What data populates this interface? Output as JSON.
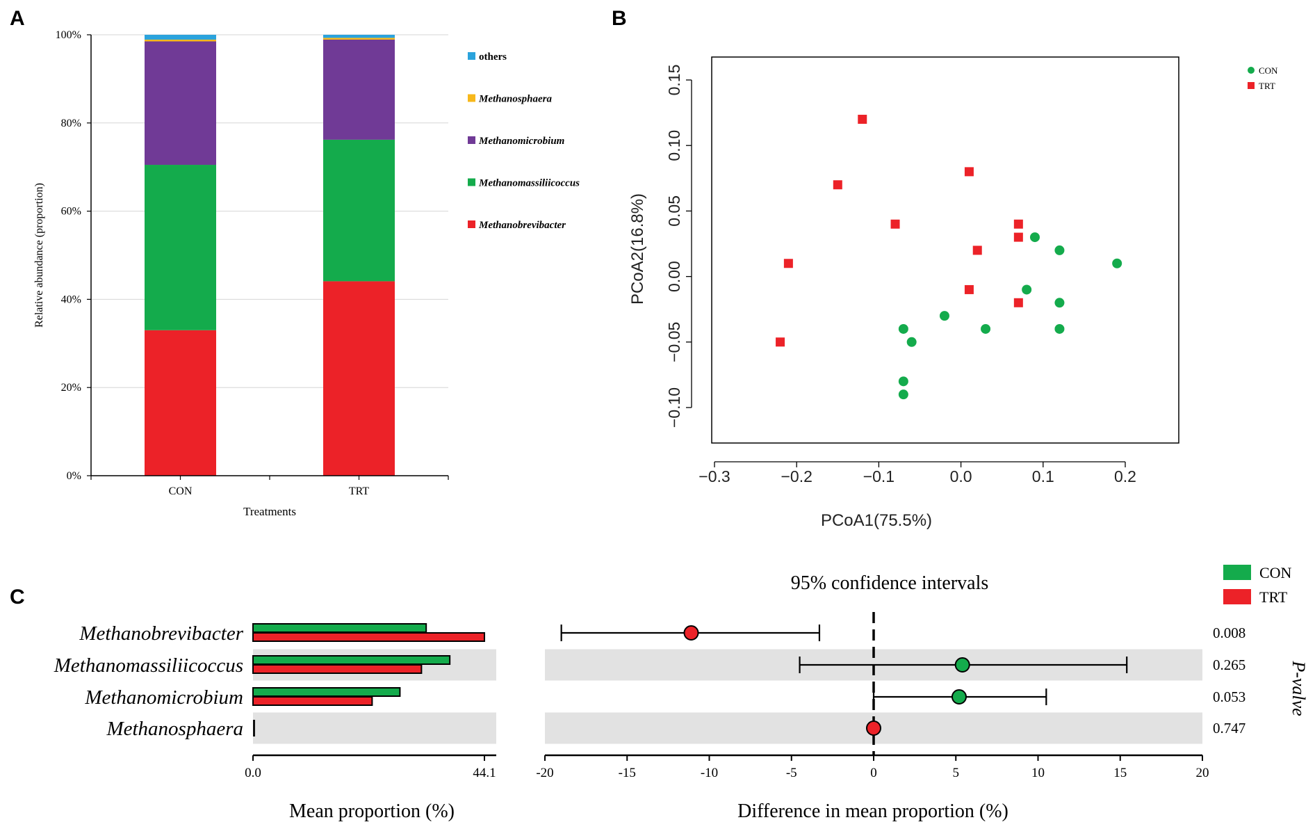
{
  "panel_labels": {
    "a": "A",
    "b": "B",
    "c": "C"
  },
  "colors": {
    "red": "#ec2228",
    "green": "#14ab4c",
    "purple": "#703a96",
    "orange": "#f7b81b",
    "blue": "#2ba3dc",
    "ci_band": "#e2e2e2"
  },
  "chart_data": [
    {
      "id": "A",
      "type": "bar",
      "stacked": true,
      "categories": [
        "CON",
        "TRT"
      ],
      "series": [
        {
          "name": "Methanobrevibacter",
          "color": "#ec2228",
          "values": [
            33.0,
            44.1
          ]
        },
        {
          "name": "Methanomassiliicoccus",
          "color": "#14ab4c",
          "values": [
            37.5,
            32.1
          ]
        },
        {
          "name": "Methanomicrobium",
          "color": "#703a96",
          "values": [
            28.0,
            22.7
          ]
        },
        {
          "name": "Methanosphaera",
          "color": "#f7b81b",
          "values": [
            0.4,
            0.4
          ]
        },
        {
          "name": "others",
          "color": "#2ba3dc",
          "values": [
            1.1,
            0.7
          ]
        }
      ],
      "legend": [
        "others",
        "Methanosphaera",
        "Methanomicrobium",
        "Methanomassiliicoccus",
        "Methanobrevibacter"
      ],
      "yticks": [
        "0%",
        "20%",
        "40%",
        "60%",
        "80%",
        "100%"
      ],
      "ylim": [
        0,
        100
      ],
      "xlabel": "Treatments",
      "ylabel": "Relative abundance (proportion)",
      "grid": true
    },
    {
      "id": "B",
      "type": "scatter",
      "xlabel": "PCoA1(75.5%)",
      "ylabel": "PCoA2(16.8%)",
      "xlim": [
        -0.3,
        0.2
      ],
      "ylim": [
        -0.1,
        0.15
      ],
      "xticks": [
        "−0.3",
        "−0.2",
        "−0.1",
        "0.0",
        "0.1",
        "0.2"
      ],
      "yticks": [
        "−0.10",
        "−0.05",
        "0.00",
        "0.05",
        "0.10",
        "0.15"
      ],
      "legend": [
        "CON",
        "TRT"
      ],
      "series": [
        {
          "name": "CON",
          "color": "#14ab4c",
          "marker": "circle",
          "points": [
            [
              0.09,
              0.03
            ],
            [
              0.12,
              0.02
            ],
            [
              0.19,
              0.01
            ],
            [
              0.08,
              -0.01
            ],
            [
              0.12,
              -0.02
            ],
            [
              -0.02,
              -0.03
            ],
            [
              -0.07,
              -0.04
            ],
            [
              0.03,
              -0.04
            ],
            [
              0.12,
              -0.04
            ],
            [
              -0.06,
              -0.05
            ],
            [
              -0.07,
              -0.08
            ],
            [
              -0.07,
              -0.09
            ]
          ]
        },
        {
          "name": "TRT",
          "color": "#ec2228",
          "marker": "square",
          "points": [
            [
              -0.12,
              0.12
            ],
            [
              0.01,
              0.08
            ],
            [
              -0.15,
              0.07
            ],
            [
              -0.08,
              0.04
            ],
            [
              0.07,
              0.04
            ],
            [
              0.07,
              0.03
            ],
            [
              0.02,
              0.02
            ],
            [
              -0.21,
              0.01
            ],
            [
              0.01,
              -0.01
            ],
            [
              0.07,
              -0.02
            ],
            [
              -0.22,
              -0.05
            ]
          ]
        }
      ]
    },
    {
      "id": "C-bars",
      "type": "bar",
      "orientation": "horizontal",
      "categories": [
        "Methanobrevibacter",
        "Methanomassiliicoccus",
        "Methanomicrobium",
        "Methanosphaera"
      ],
      "series": [
        {
          "name": "CON",
          "color": "#14ab4c",
          "values": [
            33.0,
            37.5,
            28.0,
            0.4
          ]
        },
        {
          "name": "TRT",
          "color": "#ec2228",
          "values": [
            44.1,
            32.1,
            22.7,
            0.4
          ]
        }
      ],
      "xlim": [
        0,
        44.1
      ],
      "xticks": [
        "0.0",
        "44.1"
      ],
      "xlabel": "Mean proportion (%)"
    },
    {
      "id": "C-ci",
      "type": "scatter",
      "title": "95% confidence intervals",
      "xlabel": "Difference in mean proportion (%)",
      "xlim": [
        -20,
        20
      ],
      "xticks": [
        "-20",
        "-15",
        "-10",
        "-5",
        "0",
        "5",
        "10",
        "15",
        "20"
      ],
      "legend": [
        "CON",
        "TRT"
      ],
      "side_label": "P-valve",
      "rows": [
        {
          "name": "Methanobrevibacter",
          "diff": -11.1,
          "lo": -19.0,
          "hi": -3.3,
          "favors": "TRT",
          "color": "#ec2228",
          "p": "0.008"
        },
        {
          "name": "Methanomassiliicoccus",
          "diff": 5.4,
          "lo": -4.5,
          "hi": 15.4,
          "favors": "CON",
          "color": "#14ab4c",
          "p": "0.265"
        },
        {
          "name": "Methanomicrobium",
          "diff": 5.2,
          "lo": 0.0,
          "hi": 10.5,
          "favors": "CON",
          "color": "#14ab4c",
          "p": "0.053"
        },
        {
          "name": "Methanosphaera",
          "diff": 0.0,
          "lo": 0.0,
          "hi": 0.0,
          "favors": "TRT",
          "color": "#ec2228",
          "p": "0.747"
        }
      ]
    }
  ]
}
